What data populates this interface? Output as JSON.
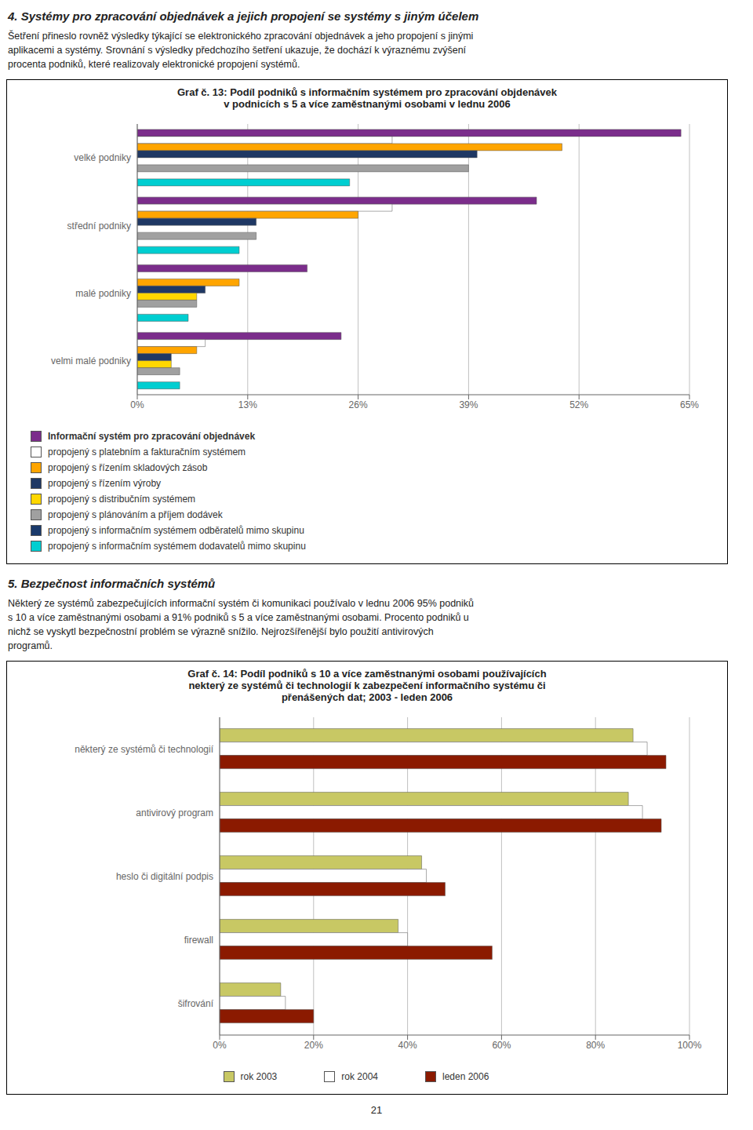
{
  "annotations": [
    "21"
  ],
  "chart_data": [
    {
      "type": "bar",
      "orientation": "horizontal",
      "annotations": [
        "4. Systémy pro zpracování objednávek a jejich propojení se systémy s jiným účelem",
        "Šetření přineslo rovněž výsledky týkající se elektronického zpracování objednávek a jeho propojení s jinými",
        "aplikacemi a systémy. Srovnání s výsledky předchozího šetření ukazuje, že dochází k výraznému zvýšení",
        "procenta podniků, které realizovaly elektronické propojení systémů."
      ],
      "title": "Graf č. 13: Podíl podniků s informačním systémem pro zpracování objdenávek\nv podnicích s 5 a více zaměstnanými osobami v lednu 2006",
      "categories": [
        "velké podniky",
        "střední podniky",
        "malé podniky",
        "velmi malé podniky"
      ],
      "series": [
        {
          "name": "Informační systém pro zpracování objednávek",
          "color": "#7B2D8B",
          "values": [
            64,
            47,
            20,
            24
          ]
        },
        {
          "name": "propojený s platebním a fakturačním systémem",
          "color": "#FFFFFF",
          "values": [
            30,
            30,
            0,
            8
          ]
        },
        {
          "name": "propojený s řízením skladových zásob",
          "color": "#FFA500",
          "values": [
            50,
            26,
            12,
            7
          ]
        },
        {
          "name": "propojený s řízením výroby",
          "color": "#1F3864",
          "values": [
            40,
            14,
            8,
            4
          ]
        },
        {
          "name": "propojený s distribučním systémem",
          "color": "#FFD700",
          "values": [
            0,
            0,
            7,
            4
          ]
        },
        {
          "name": "propojený s plánováním a příjem dodávek",
          "color": "#A0A0A0",
          "values": [
            39,
            14,
            7,
            5
          ]
        },
        {
          "name": "propojený s informačním systémem odběratelů mimo skupinu",
          "color": "#1A3A6B",
          "values": [
            0,
            0,
            0,
            0
          ]
        },
        {
          "name": "propojený s informačním systémem dodavatelů mimo skupinu",
          "color": "#00CED1",
          "values": [
            25,
            12,
            6,
            5
          ]
        }
      ],
      "xlim": [
        0,
        65
      ],
      "xticks": [
        {
          "value": 0,
          "label": "0%"
        },
        {
          "value": 13,
          "label": "13%"
        },
        {
          "value": 26,
          "label": "26%"
        },
        {
          "value": 39,
          "label": "39%"
        },
        {
          "value": 52,
          "label": "52%"
        },
        {
          "value": 65,
          "label": "65%"
        }
      ],
      "grid": true,
      "legend": "bottom"
    },
    {
      "type": "bar",
      "orientation": "horizontal",
      "annotations": [
        "5. Bezpečnost informačních systémů",
        "Některý ze systémů zabezpečujících informační systém či komunikaci používalo v lednu 2006 95% podniků",
        "s 10 a více zaměstnanými osobami a 91% podniků s 5 a více zaměstnanými osobami. Procento podniků u",
        "nichž se vyskytl bezpečnostní problém se výrazně snížilo. Nejrozšířenější bylo použití antivirových",
        "programů."
      ],
      "title": "Graf č. 14: Podíl podniků s 10 a více zaměstnanými osobami používajících\nnekterý ze systémů či technologií k zabezpečení informačního systému či\npřenášených dat; 2003 - leden 2006",
      "categories": [
        "některý ze systémů či technologií",
        "antivirový program",
        "heslo či digitální podpis",
        "firewall",
        "šifrování"
      ],
      "series": [
        {
          "name": "rok 2003",
          "color": "#C8C864",
          "values": [
            88,
            87,
            43,
            38,
            13
          ]
        },
        {
          "name": "rok 2004",
          "color": "#FFFFFF",
          "values": [
            91,
            90,
            44,
            40,
            14
          ]
        },
        {
          "name": "leden 2006",
          "color": "#8B1A00",
          "values": [
            95,
            94,
            48,
            58,
            20
          ]
        }
      ],
      "xlim": [
        0,
        100
      ],
      "xticks": [
        {
          "value": 0,
          "label": "0%"
        },
        {
          "value": 20,
          "label": "20%"
        },
        {
          "value": 40,
          "label": "40%"
        },
        {
          "value": 60,
          "label": "60%"
        },
        {
          "value": 80,
          "label": "80%"
        },
        {
          "value": 100,
          "label": "100%"
        }
      ],
      "grid": true,
      "legend": "bottom"
    }
  ]
}
